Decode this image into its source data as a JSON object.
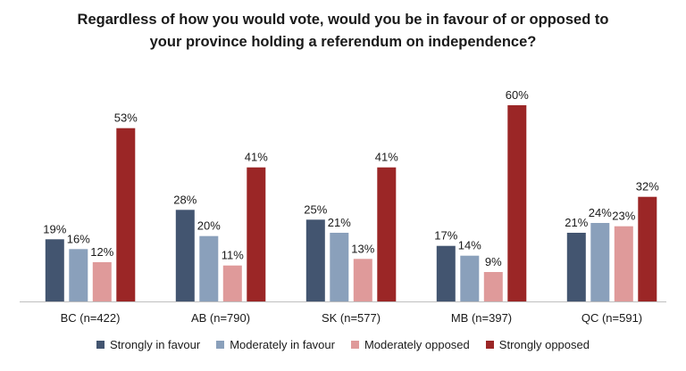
{
  "chart_data": {
    "type": "bar",
    "title_line1": "Regardless of how you would vote, would you be in favour of or opposed to",
    "title_line2": "your province holding a referendum on independence?",
    "categories": [
      "BC (n=422)",
      "AB (n=790)",
      "SK (n=577)",
      "MB (n=397)",
      "QC (n=591)"
    ],
    "series": [
      {
        "name": "Strongly in favour",
        "color": "#435570",
        "values": [
          19,
          28,
          25,
          17,
          21
        ]
      },
      {
        "name": "Moderately in favour",
        "color": "#8aa0bb",
        "values": [
          16,
          20,
          21,
          14,
          24
        ]
      },
      {
        "name": "Moderately opposed",
        "color": "#df9a9a",
        "values": [
          12,
          11,
          13,
          9,
          23
        ]
      },
      {
        "name": "Strongly opposed",
        "color": "#9b2626",
        "values": [
          53,
          41,
          41,
          60,
          32
        ]
      }
    ],
    "value_suffix": "%",
    "ylim": [
      0,
      60
    ],
    "xlabel": "",
    "ylabel": "",
    "legend_position": "bottom"
  }
}
